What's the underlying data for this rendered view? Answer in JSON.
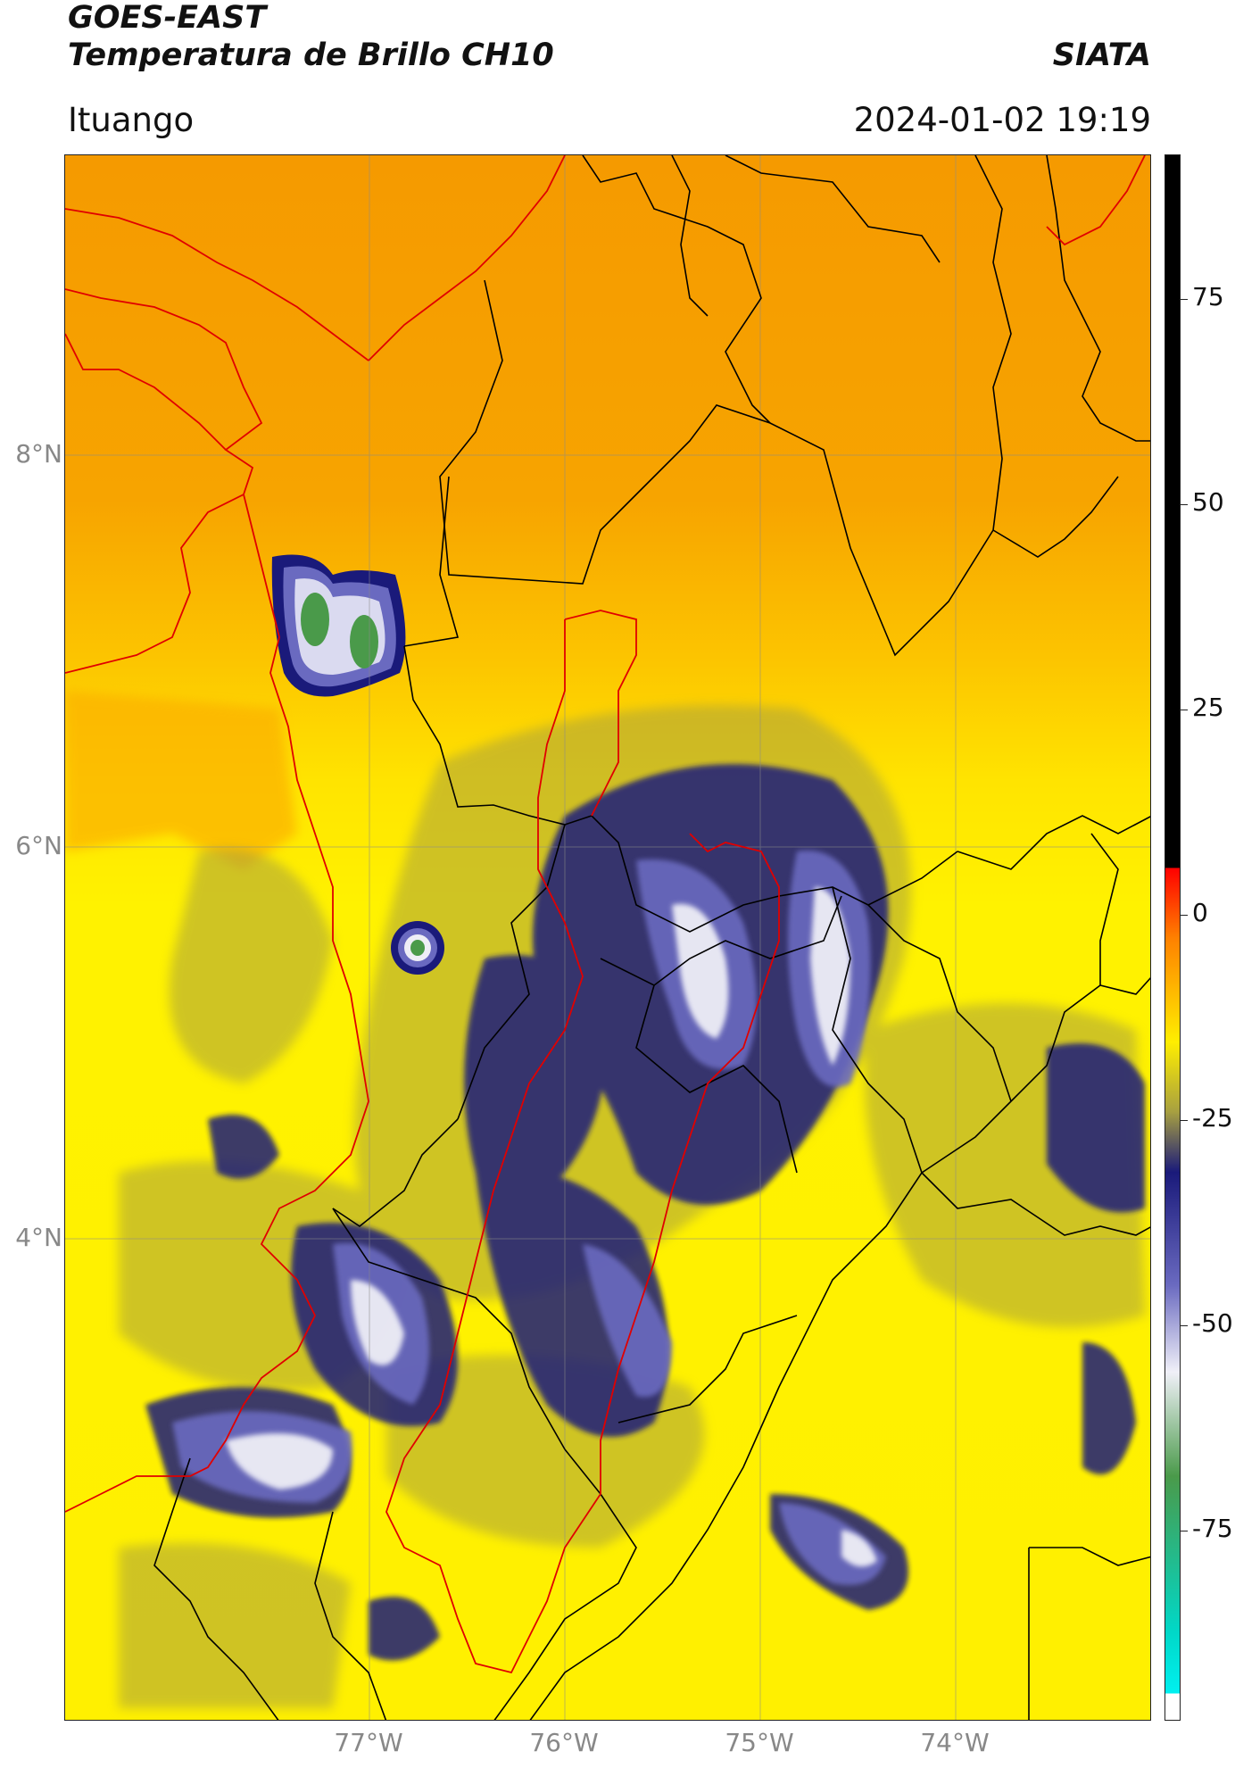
{
  "header": {
    "title_line1": "GOES-EAST",
    "title_line2": "Temperatura de Brillo CH10",
    "brand": "SIATA",
    "region": "Ituango",
    "timestamp": "2024-01-02 19:19"
  },
  "map": {
    "lat_labels": [
      "8°N",
      "6°N",
      "4°N"
    ],
    "lon_labels": [
      "77°W",
      "76°W",
      "75°W",
      "74°W"
    ],
    "colors": {
      "warm_orange": "#f7a000",
      "orange_light": "#ffc000",
      "yellow": "#ffee00",
      "olive": "#a8a040",
      "navy": "#1a1a7a",
      "blue_mid": "#5a5ab8",
      "white_cold": "#e8e8f4",
      "green_cold": "#4a9a4a",
      "border_black": "#000000",
      "border_red": "#e00000"
    }
  },
  "colorbar": {
    "tick_labels": [
      "75",
      "50",
      "25",
      "0",
      "-25",
      "-50",
      "-75"
    ],
    "stops": [
      {
        "value": 90,
        "color": "#000000"
      },
      {
        "value": 8,
        "color": "#000000"
      },
      {
        "value": 8,
        "color": "#ff0000"
      },
      {
        "value": 0,
        "color": "#ff8000"
      },
      {
        "value": -12,
        "color": "#ffee00"
      },
      {
        "value": -20,
        "color": "#a8a040"
      },
      {
        "value": -27,
        "color": "#1a1a7a"
      },
      {
        "value": -40,
        "color": "#6a6ac0"
      },
      {
        "value": -50,
        "color": "#f0f0f8"
      },
      {
        "value": -62,
        "color": "#4a9a4a"
      },
      {
        "value": -80,
        "color": "#00d8c8"
      },
      {
        "value": -87,
        "color": "#00f0f0"
      },
      {
        "value": -87,
        "color": "#ffffff"
      },
      {
        "value": -90,
        "color": "#ffffff"
      }
    ],
    "range": [
      -90,
      90
    ]
  }
}
